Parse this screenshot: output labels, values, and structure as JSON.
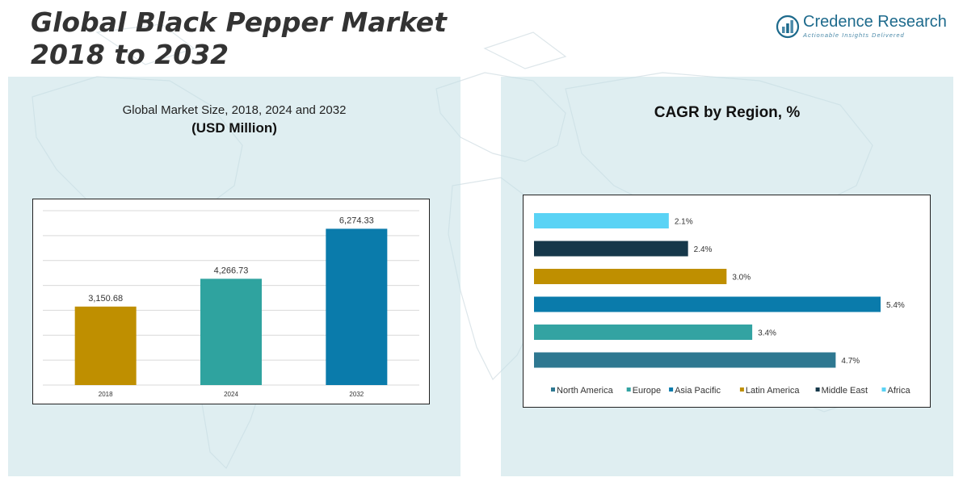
{
  "header": {
    "title_line1": "Global Black Pepper Market",
    "title_line2": "2018 to 2032"
  },
  "logo": {
    "name": "Credence Research",
    "tagline": "Actionable Insights Delivered",
    "icon": "bar-chart-icon",
    "color": "#1d6a8c"
  },
  "left_panel": {
    "subtitle": "Global Market Size, 2018, 2024 and 2032",
    "unit": "(USD Million)"
  },
  "right_panel": {
    "title": "CAGR by Region, %"
  },
  "chart_data": [
    {
      "type": "bar",
      "categories": [
        "2018",
        "2024",
        "2032"
      ],
      "values": [
        3150.68,
        4266.73,
        6274.33
      ],
      "value_labels": [
        "3,150.68",
        "4,266.73",
        "6,274.33"
      ],
      "colors": [
        "#bf8f00",
        "#2fa39f",
        "#0a7bab"
      ],
      "ylim": [
        0,
        7000
      ],
      "grid": true
    },
    {
      "type": "bar",
      "orientation": "horizontal",
      "categories": [
        "North America",
        "Europe",
        "Asia Pacific",
        "Latin America",
        "Middle East",
        "Africa"
      ],
      "values": [
        4.7,
        3.4,
        5.4,
        3.0,
        2.4,
        2.1
      ],
      "value_labels": [
        "4.7%",
        "3.4%",
        "5.4%",
        "3.0%",
        "2.4%",
        "2.1%"
      ],
      "colors": [
        "#2e7891",
        "#33a3a2",
        "#0a7bab",
        "#bf8f00",
        "#16384a",
        "#5ad3f5"
      ],
      "legend": "bottom",
      "xlim": [
        0,
        5.4
      ]
    }
  ]
}
